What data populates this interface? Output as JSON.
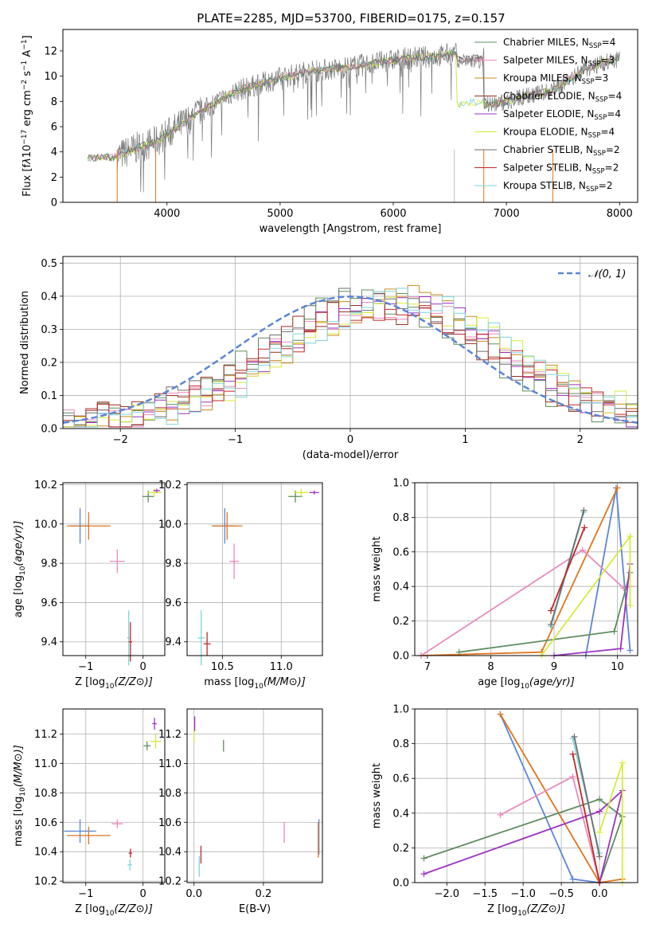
{
  "title": "PLATE=2285, MJD=53700, FIBERID=0175, z=0.157",
  "colors": {
    "chab_miles": "#5f8c5f",
    "salp_miles": "#e88bbd",
    "krou_miles": "#c98b1f",
    "chab_elodie": "#9a2d1f",
    "salp_elodie": "#9b33c2",
    "krou_elodie": "#d7ea3a",
    "chab_stelib": "#6e6e6e",
    "salp_stelib": "#c0282a",
    "krou_stelib": "#7fd3d9",
    "normal_curve": "#5b85d6",
    "orange": "#e0741c",
    "blue": "#5b85d6",
    "green": "#5f8c5f"
  },
  "chart_data": [
    {
      "id": "spectrum",
      "type": "line",
      "xlabel": "wavelength [Angstrom, rest frame]",
      "ylabel_parts": [
        "Flux [f",
        "λ",
        "10",
        "−17",
        " erg cm",
        "−2",
        " s",
        "−1",
        " A",
        "−1",
        "]"
      ],
      "xlim": [
        3080,
        8160
      ],
      "ylim": [
        0,
        13.7
      ],
      "xticks": [
        4000,
        5000,
        6000,
        7000,
        8000
      ],
      "yticks": [
        0,
        2,
        4,
        6,
        8,
        10,
        12
      ],
      "legend": [
        {
          "base": "Chabrier MILES, N",
          "n": "4",
          "color": "chab_miles"
        },
        {
          "base": "Salpeter MILES, N",
          "n": "3",
          "color": "salp_miles"
        },
        {
          "base": "Kroupa MILES, N",
          "n": "3",
          "color": "krou_miles"
        },
        {
          "base": "Chabrier ELODIE, N",
          "n": "4",
          "color": "chab_elodie"
        },
        {
          "base": "Salpeter ELODIE, N",
          "n": "4",
          "color": "salp_elodie"
        },
        {
          "base": "Kroupa ELODIE, N",
          "n": "4",
          "color": "krou_elodie"
        },
        {
          "base": "Chabrier STELIB, N",
          "n": "2",
          "color": "chab_stelib"
        },
        {
          "base": "Salpeter STELIB, N",
          "n": "2",
          "color": "salp_stelib"
        },
        {
          "base": "Kroupa STELIB, N",
          "n": "2",
          "color": "krou_stelib"
        }
      ],
      "legend_sub": "SSP",
      "continuum": [
        [
          3300,
          3.5
        ],
        [
          3550,
          3.6
        ],
        [
          3700,
          4.2
        ],
        [
          3900,
          4.8
        ],
        [
          4100,
          6.0
        ],
        [
          4300,
          7.2
        ],
        [
          4600,
          8.8
        ],
        [
          4900,
          9.6
        ],
        [
          5200,
          10.3
        ],
        [
          5500,
          10.6
        ],
        [
          5800,
          11.0
        ],
        [
          6100,
          11.4
        ],
        [
          6400,
          11.6
        ],
        [
          6560,
          11.8
        ],
        [
          6800,
          11.4
        ]
      ],
      "dropoff": [
        [
          6560,
          7.7
        ],
        [
          6800,
          7.7
        ],
        [
          7000,
          8.0
        ],
        [
          7200,
          8.5
        ],
        [
          7400,
          8.8
        ],
        [
          7700,
          10.6
        ],
        [
          8000,
          11.4
        ]
      ],
      "vlines": [
        3560,
        3900,
        6540,
        6800,
        7410
      ]
    },
    {
      "id": "residuals",
      "type": "histogram",
      "xlabel": "(data-model)/error",
      "ylabel": "Normed distribution",
      "xlim": [
        -2.5,
        2.5
      ],
      "ylim": [
        0,
        0.52
      ],
      "xticks": [
        -2,
        -1,
        0,
        1,
        2
      ],
      "yticks": [
        0.0,
        0.1,
        0.2,
        0.3,
        0.4,
        0.5
      ],
      "legend": "𝒩(0, 1)",
      "bin_width": 0.1
    },
    {
      "id": "age-vs-z",
      "type": "scatter",
      "xlabel": "Z [log10(Z/Z⊙)]",
      "ylabel": "age  [log10(age/yr)]",
      "xlim": [
        -1.4,
        0.38
      ],
      "ylim": [
        9.33,
        10.21
      ],
      "xticks": [
        -1,
        0
      ],
      "yticks": [
        9.4,
        9.6,
        9.8,
        10.0,
        10.2
      ],
      "points": [
        {
          "x": -1.1,
          "y": 9.99,
          "ex": 0.17,
          "ey": 0.09,
          "color": "blue"
        },
        {
          "x": -0.95,
          "y": 9.99,
          "ex": 0.38,
          "ey": 0.07,
          "color": "orange"
        },
        {
          "x": -0.45,
          "y": 9.81,
          "ex": 0.13,
          "ey": 0.06,
          "color": "salp_miles"
        },
        {
          "x": -0.25,
          "y": 9.42,
          "ex": 0.03,
          "ey": 0.14,
          "color": "krou_stelib"
        },
        {
          "x": -0.22,
          "y": 9.4,
          "ex": 0.03,
          "ey": 0.1,
          "color": "salp_stelib"
        },
        {
          "x": 0.09,
          "y": 10.14,
          "ex": 0.1,
          "ey": 0.03,
          "color": "green"
        },
        {
          "x": 0.2,
          "y": 10.16,
          "ex": 0.12,
          "ey": 0.02,
          "color": "krou_elodie"
        },
        {
          "x": 0.24,
          "y": 10.17,
          "ex": 0.06,
          "ey": 0.01,
          "color": "salp_elodie"
        }
      ]
    },
    {
      "id": "age-vs-mass",
      "type": "scatter",
      "xlabel": "mass [log10(M/M⊙)]",
      "ylabel": "",
      "xlim": [
        10.2,
        11.35
      ],
      "ylim": [
        9.33,
        10.21
      ],
      "xticks": [
        10.5,
        11.0
      ],
      "yticks": [
        9.4,
        9.6,
        9.8,
        10.0,
        10.2
      ],
      "points": [
        {
          "x": 10.52,
          "y": 9.99,
          "ex": 0.1,
          "ey": 0.09,
          "color": "blue"
        },
        {
          "x": 10.54,
          "y": 9.99,
          "ex": 0.13,
          "ey": 0.07,
          "color": "orange"
        },
        {
          "x": 10.6,
          "y": 9.81,
          "ex": 0.04,
          "ey": 0.09,
          "color": "salp_miles"
        },
        {
          "x": 10.32,
          "y": 9.42,
          "ex": 0.03,
          "ey": 0.14,
          "color": "krou_stelib"
        },
        {
          "x": 10.37,
          "y": 9.39,
          "ex": 0.03,
          "ey": 0.06,
          "color": "salp_stelib"
        },
        {
          "x": 11.12,
          "y": 10.14,
          "ex": 0.06,
          "ey": 0.03,
          "color": "green"
        },
        {
          "x": 11.17,
          "y": 10.16,
          "ex": 0.06,
          "ey": 0.02,
          "color": "krou_elodie"
        },
        {
          "x": 11.28,
          "y": 10.16,
          "ex": 0.04,
          "ey": 0.01,
          "color": "salp_elodie"
        }
      ]
    },
    {
      "id": "mass-weight-vs-age",
      "type": "line",
      "xlabel": "age  [log10(age/yr)]",
      "ylabel": "mass weight",
      "xlim": [
        6.8,
        10.32
      ],
      "ylim": [
        0,
        1.0
      ],
      "xticks": [
        7,
        8,
        9,
        10
      ],
      "yticks": [
        0.0,
        0.2,
        0.4,
        0.6,
        0.8,
        1.0
      ],
      "series": [
        {
          "color": "blue",
          "points": [
            [
              9.5,
              0.0
            ],
            [
              9.98,
              0.97
            ],
            [
              10.2,
              0.03
            ]
          ]
        },
        {
          "color": "orange",
          "points": [
            [
              6.9,
              0.0
            ],
            [
              8.8,
              0.02
            ],
            [
              10.0,
              0.97
            ]
          ]
        },
        {
          "color": "salp_miles",
          "points": [
            [
              6.9,
              0.0
            ],
            [
              9.45,
              0.61
            ],
            [
              10.1,
              0.39
            ],
            [
              10.2,
              0.4
            ]
          ]
        },
        {
          "color": "green",
          "points": [
            [
              7.5,
              0.02
            ],
            [
              9.95,
              0.14
            ],
            [
              10.2,
              0.48
            ]
          ]
        },
        {
          "color": "salp_elodie",
          "points": [
            [
              9.0,
              0.0
            ],
            [
              10.05,
              0.04
            ],
            [
              10.2,
              0.53
            ]
          ]
        },
        {
          "color": "krou_elodie",
          "points": [
            [
              8.8,
              0.0
            ],
            [
              10.2,
              0.69
            ],
            [
              10.2,
              0.29
            ]
          ]
        },
        {
          "color": "krou_stelib",
          "points": [
            [
              8.95,
              0.17
            ],
            [
              9.47,
              0.83
            ]
          ]
        },
        {
          "color": "chab_stelib",
          "points": [
            [
              8.95,
              0.18
            ],
            [
              9.47,
              0.84
            ]
          ]
        },
        {
          "color": "salp_stelib",
          "points": [
            [
              8.95,
              0.26
            ],
            [
              9.48,
              0.74
            ]
          ]
        }
      ]
    },
    {
      "id": "mass-vs-z",
      "type": "scatter",
      "xlabel": "Z [log10(Z/Z⊙)]",
      "ylabel": "mass [log10(M/M⊙)]",
      "xlim": [
        -1.4,
        0.38
      ],
      "ylim": [
        10.19,
        11.37
      ],
      "xticks": [
        -1,
        0
      ],
      "yticks": [
        10.2,
        10.4,
        10.6,
        10.8,
        11.0,
        11.2
      ],
      "points": [
        {
          "x": -1.1,
          "y": 10.54,
          "ex": 0.28,
          "ey": 0.08,
          "color": "blue"
        },
        {
          "x": -0.95,
          "y": 10.51,
          "ex": 0.38,
          "ey": 0.06,
          "color": "orange"
        },
        {
          "x": -0.45,
          "y": 10.59,
          "ex": 0.1,
          "ey": 0.03,
          "color": "salp_miles"
        },
        {
          "x": -0.23,
          "y": 10.31,
          "ex": 0.04,
          "ey": 0.04,
          "color": "krou_stelib"
        },
        {
          "x": -0.22,
          "y": 10.39,
          "ex": 0.03,
          "ey": 0.03,
          "color": "salp_stelib"
        },
        {
          "x": 0.07,
          "y": 11.12,
          "ex": 0.06,
          "ey": 0.03,
          "color": "green"
        },
        {
          "x": 0.22,
          "y": 11.15,
          "ex": 0.1,
          "ey": 0.05,
          "color": "krou_elodie"
        },
        {
          "x": 0.2,
          "y": 11.27,
          "ex": 0.04,
          "ey": 0.04,
          "color": "salp_elodie"
        }
      ]
    },
    {
      "id": "mass-vs-ebv",
      "type": "scatter",
      "xlabel": "E(B-V)",
      "ylabel": "",
      "xlim": [
        -0.02,
        0.37
      ],
      "ylim": [
        10.19,
        11.37
      ],
      "xticks": [
        0.0,
        0.2
      ],
      "yticks": [
        10.2,
        10.4,
        10.6,
        10.8,
        11.0,
        11.2
      ],
      "points": [
        {
          "x": 0.36,
          "y": 10.5,
          "ex": 0,
          "ey": 0.12,
          "color": "blue"
        },
        {
          "x": 0.358,
          "y": 10.48,
          "ex": 0,
          "ey": 0.12,
          "color": "orange"
        },
        {
          "x": 0.26,
          "y": 10.53,
          "ex": 0,
          "ey": 0.07,
          "color": "salp_miles"
        },
        {
          "x": 0.015,
          "y": 10.3,
          "ex": 0,
          "ey": 0.07,
          "color": "krou_stelib"
        },
        {
          "x": 0.02,
          "y": 10.38,
          "ex": 0,
          "ey": 0.06,
          "color": "salp_stelib"
        },
        {
          "x": 0.085,
          "y": 11.12,
          "ex": 0,
          "ey": 0.04,
          "color": "green"
        },
        {
          "x": 0.0,
          "y": 11.19,
          "ex": 0,
          "ey": 0.05,
          "color": "krou_elodie"
        },
        {
          "x": 0.002,
          "y": 11.27,
          "ex": 0,
          "ey": 0.05,
          "color": "salp_elodie"
        }
      ]
    },
    {
      "id": "mass-weight-vs-z",
      "type": "line",
      "xlabel": "Z [log10(Z/Z⊙)]",
      "ylabel": "mass weight",
      "xlim": [
        -2.42,
        0.5
      ],
      "ylim": [
        0,
        1.0
      ],
      "xticks": [
        -2.0,
        -1.5,
        -1.0,
        -0.5,
        0.0
      ],
      "yticks": [
        0.0,
        0.2,
        0.4,
        0.6,
        0.8,
        1.0
      ],
      "series": [
        {
          "color": "blue",
          "points": [
            [
              -1.3,
              0.97
            ],
            [
              -0.35,
              0.02
            ],
            [
              0.0,
              0.0
            ]
          ]
        },
        {
          "color": "orange",
          "points": [
            [
              -1.3,
              0.97
            ],
            [
              0.0,
              0.0
            ],
            [
              0.3,
              0.02
            ]
          ]
        },
        {
          "color": "salp_miles",
          "points": [
            [
              -1.3,
              0.39
            ],
            [
              -0.35,
              0.61
            ],
            [
              0.0,
              0.0
            ]
          ]
        },
        {
          "color": "green",
          "points": [
            [
              -2.3,
              0.14
            ],
            [
              0.0,
              0.48
            ],
            [
              0.3,
              0.38
            ],
            [
              0.0,
              0.0
            ]
          ]
        },
        {
          "color": "salp_elodie",
          "points": [
            [
              -2.3,
              0.05
            ],
            [
              0.0,
              0.41
            ],
            [
              0.3,
              0.53
            ],
            [
              0.0,
              0.0
            ]
          ]
        },
        {
          "color": "krou_elodie",
          "points": [
            [
              0.0,
              0.29
            ],
            [
              0.3,
              0.69
            ],
            [
              0.3,
              0.0
            ]
          ]
        },
        {
          "color": "krou_stelib",
          "points": [
            [
              -0.35,
              0.83
            ],
            [
              0.0,
              0.17
            ]
          ]
        },
        {
          "color": "chab_stelib",
          "points": [
            [
              -0.33,
              0.84
            ],
            [
              0.0,
              0.15
            ]
          ]
        },
        {
          "color": "salp_stelib",
          "points": [
            [
              -0.35,
              0.74
            ],
            [
              0.0,
              0.0
            ]
          ]
        }
      ]
    }
  ]
}
